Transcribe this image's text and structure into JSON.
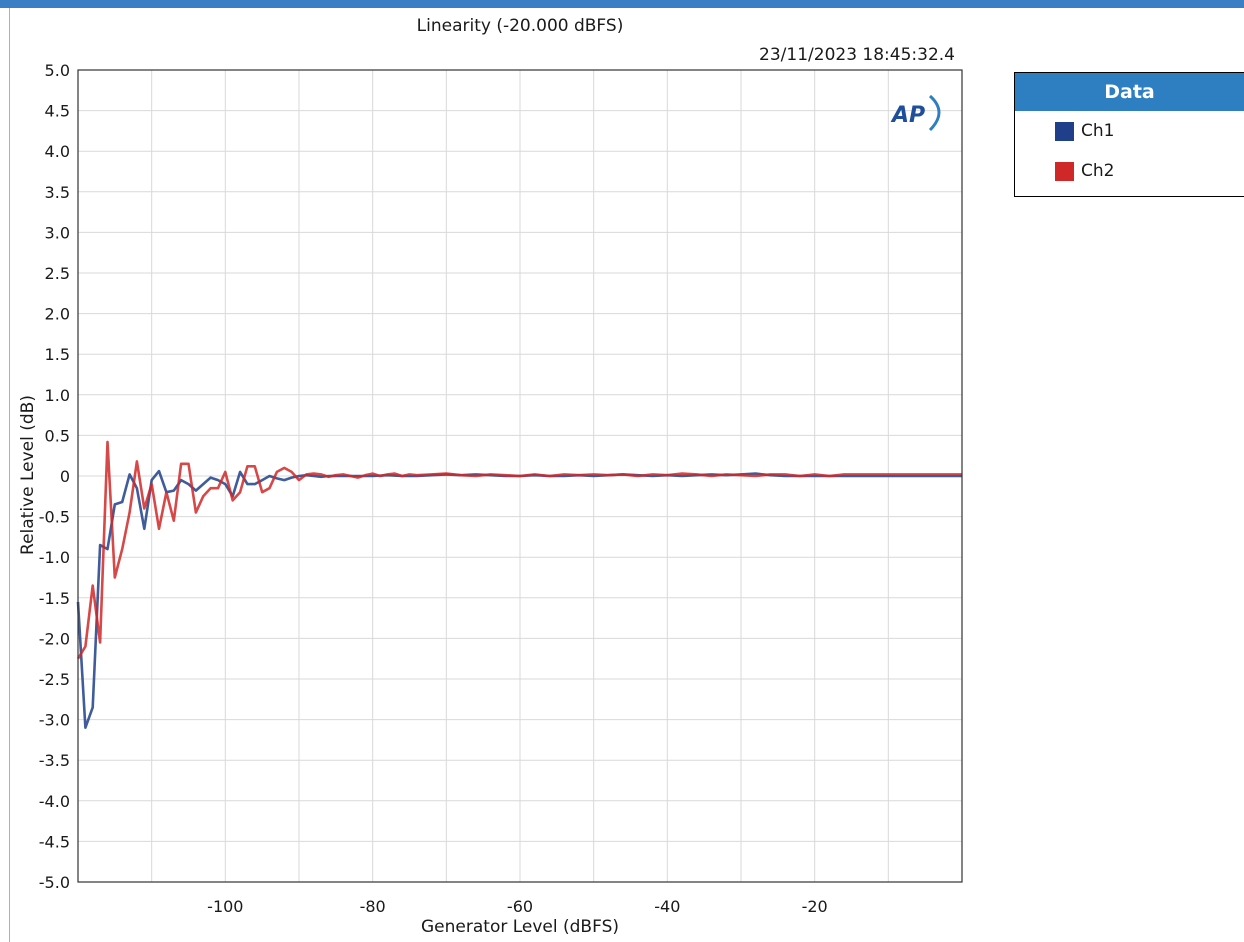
{
  "colors": {
    "ch1": "#1f3f8a",
    "ch2": "#d02828",
    "accent": "#2e7fc2",
    "grid": "#d9d9d9"
  },
  "icons": {
    "logo": "ap-logo-icon"
  },
  "legend": {
    "title": "Data",
    "items": [
      {
        "label": "Ch1",
        "color": "#1f3f8a"
      },
      {
        "label": "Ch2",
        "color": "#d02828"
      }
    ]
  },
  "chart_data": {
    "type": "line",
    "title": "Linearity (-20.000 dBFS)",
    "timestamp": "23/11/2023 18:45:32.4",
    "logo_text": "AP",
    "xlabel": "Generator Level (dBFS)",
    "ylabel": "Relative Level (dB)",
    "xlim": [
      -120,
      0
    ],
    "ylim": [
      -5,
      5
    ],
    "x_ticks": [
      -100,
      -80,
      -60,
      -40,
      -20
    ],
    "x_tick_labels": [
      "-100",
      "-80",
      "-60",
      "-40",
      "-20"
    ],
    "y_ticks": [
      5,
      4.5,
      4,
      3.5,
      3,
      2.5,
      2,
      1.5,
      1,
      0.5,
      0,
      -0.5,
      -1,
      -1.5,
      -2,
      -2.5,
      -3,
      -3.5,
      -4,
      -4.5,
      -5
    ],
    "y_tick_labels": [
      "5.0",
      "4.5",
      "4.0",
      "3.5",
      "3.0",
      "2.5",
      "2.0",
      "1.5",
      "1.0",
      "0.5",
      "0",
      "-0.5",
      "-1.0",
      "-1.5",
      "-2.0",
      "-2.5",
      "-3.0",
      "-3.5",
      "-4.0",
      "-4.5",
      "-5.0"
    ],
    "grid": true,
    "legend_position": "right",
    "series": [
      {
        "name": "Ch1",
        "color": "#1f3f8a",
        "x": [
          -120,
          -119,
          -118,
          -117,
          -116,
          -115,
          -114,
          -113,
          -112,
          -111,
          -110,
          -109,
          -108,
          -107,
          -106,
          -105,
          -104,
          -103,
          -102,
          -101,
          -100,
          -99,
          -98,
          -97,
          -96,
          -95,
          -94,
          -93,
          -92,
          -91,
          -90,
          -89,
          -88,
          -87,
          -86,
          -85,
          -84,
          -82,
          -80,
          -78,
          -76,
          -74,
          -72,
          -70,
          -68,
          -66,
          -64,
          -62,
          -60,
          -58,
          -56,
          -54,
          -52,
          -50,
          -48,
          -46,
          -44,
          -42,
          -40,
          -38,
          -36,
          -34,
          -32,
          -30,
          -28,
          -26,
          -24,
          -22,
          -20,
          -18,
          -16,
          -14,
          -12,
          -10,
          -8,
          -6,
          -4,
          -2,
          0
        ],
        "y": [
          -1.55,
          -3.1,
          -2.85,
          -0.85,
          -0.9,
          -0.35,
          -0.32,
          0.02,
          -0.15,
          -0.65,
          -0.05,
          0.06,
          -0.2,
          -0.18,
          -0.05,
          -0.1,
          -0.18,
          -0.1,
          -0.02,
          -0.05,
          -0.1,
          -0.25,
          0.05,
          -0.1,
          -0.1,
          -0.05,
          0.0,
          -0.03,
          -0.05,
          -0.02,
          0.0,
          0.01,
          0.0,
          -0.01,
          0.0,
          0.0,
          0.0,
          0.0,
          0.0,
          0.01,
          0.0,
          0.0,
          0.01,
          0.02,
          0.01,
          0.02,
          0.01,
          0.0,
          0.0,
          0.01,
          0.0,
          0.0,
          0.01,
          0.0,
          0.01,
          0.02,
          0.01,
          0.0,
          0.01,
          0.0,
          0.01,
          0.02,
          0.01,
          0.02,
          0.03,
          0.01,
          0.0,
          0.0,
          0.0,
          0.0,
          0.0,
          0.0,
          0.0,
          0.0,
          0.0,
          0.0,
          0.0,
          0.0,
          0.0
        ]
      },
      {
        "name": "Ch2",
        "color": "#d02828",
        "x": [
          -120,
          -119,
          -118,
          -117,
          -116,
          -115,
          -114,
          -113,
          -112,
          -111,
          -110,
          -109,
          -108,
          -107,
          -106,
          -105,
          -104,
          -103,
          -102,
          -101,
          -100,
          -99,
          -98,
          -97,
          -96,
          -95,
          -94,
          -93,
          -92,
          -91,
          -90,
          -89,
          -88,
          -87,
          -86,
          -85,
          -84,
          -83,
          -82,
          -81,
          -80,
          -79,
          -78,
          -77,
          -76,
          -75,
          -74,
          -72,
          -70,
          -68,
          -66,
          -64,
          -62,
          -60,
          -58,
          -56,
          -54,
          -52,
          -50,
          -48,
          -46,
          -44,
          -42,
          -40,
          -38,
          -36,
          -34,
          -32,
          -30,
          -28,
          -26,
          -24,
          -22,
          -20,
          -18,
          -16,
          -14,
          -12,
          -10,
          -8,
          -6,
          -4,
          -2,
          0
        ],
        "y": [
          -2.25,
          -2.1,
          -1.35,
          -2.05,
          0.42,
          -1.25,
          -0.9,
          -0.45,
          0.18,
          -0.4,
          -0.1,
          -0.65,
          -0.2,
          -0.55,
          0.15,
          0.15,
          -0.45,
          -0.25,
          -0.15,
          -0.15,
          0.05,
          -0.3,
          -0.2,
          0.12,
          0.12,
          -0.2,
          -0.15,
          0.05,
          0.1,
          0.05,
          -0.05,
          0.02,
          0.03,
          0.02,
          -0.01,
          0.01,
          0.02,
          0.0,
          -0.02,
          0.01,
          0.03,
          0.0,
          0.02,
          0.03,
          0.0,
          0.02,
          0.01,
          0.02,
          0.03,
          0.01,
          0.0,
          0.02,
          0.01,
          0.0,
          0.02,
          0.0,
          0.02,
          0.01,
          0.02,
          0.01,
          0.02,
          0.0,
          0.02,
          0.01,
          0.03,
          0.02,
          0.0,
          0.02,
          0.01,
          0.0,
          0.02,
          0.02,
          0.0,
          0.02,
          0.0,
          0.02,
          0.02,
          0.02,
          0.02,
          0.02,
          0.02,
          0.02,
          0.02,
          0.02
        ]
      }
    ]
  }
}
